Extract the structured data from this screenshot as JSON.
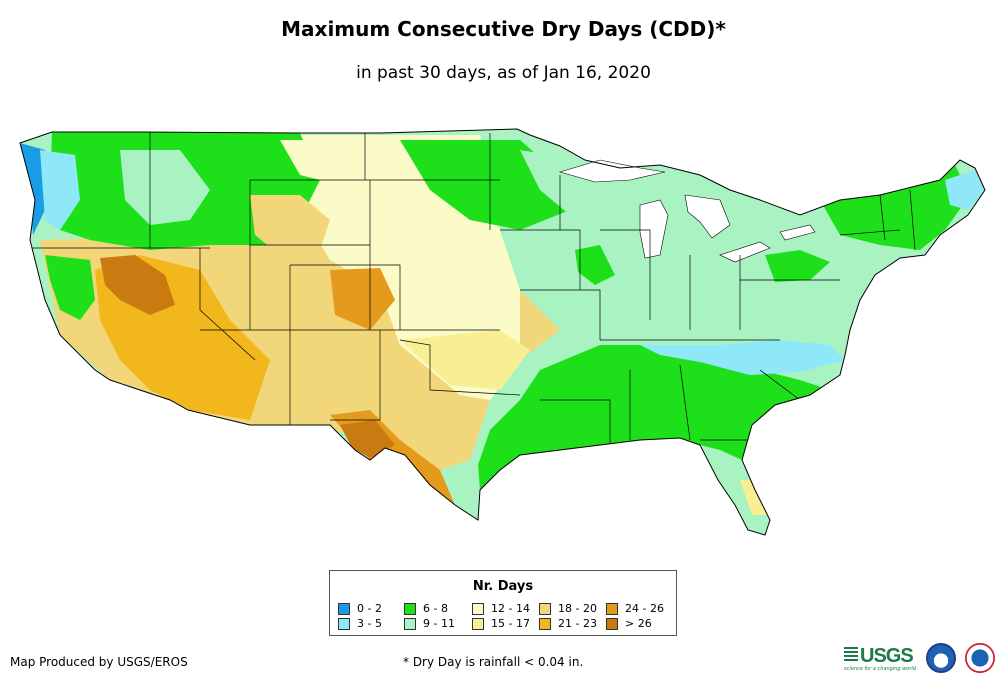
{
  "title": "Maximum Consecutive Dry Days (CDD)*",
  "subtitle": "in past 30 days, as of Jan 16, 2020",
  "legend": {
    "title": "Nr. Days",
    "items": [
      {
        "label": "0 - 2",
        "color": "#1a9de6"
      },
      {
        "label": "3 - 5",
        "color": "#8ee8f7"
      },
      {
        "label": "6 - 8",
        "color": "#1ee01a"
      },
      {
        "label": "9 - 11",
        "color": "#a9f3c3"
      },
      {
        "label": "12 - 14",
        "color": "#fbfbc8"
      },
      {
        "label": "15 - 17",
        "color": "#f8ef95"
      },
      {
        "label": "18 - 20",
        "color": "#f2d77a"
      },
      {
        "label": "21 - 23",
        "color": "#f2b71d"
      },
      {
        "label": "24 - 26",
        "color": "#e49b1c"
      },
      {
        "label": "> 26",
        "color": "#c97b12"
      }
    ]
  },
  "footer": {
    "credit": "Map Produced by USGS/EROS",
    "footnote": "* Dry Day is rainfall < 0.04 in."
  },
  "logos": [
    "usgs-logo",
    "noaa-logo",
    "nws-logo"
  ],
  "usgs_text": "USGS",
  "usgs_tagline": "science for a changing world"
}
